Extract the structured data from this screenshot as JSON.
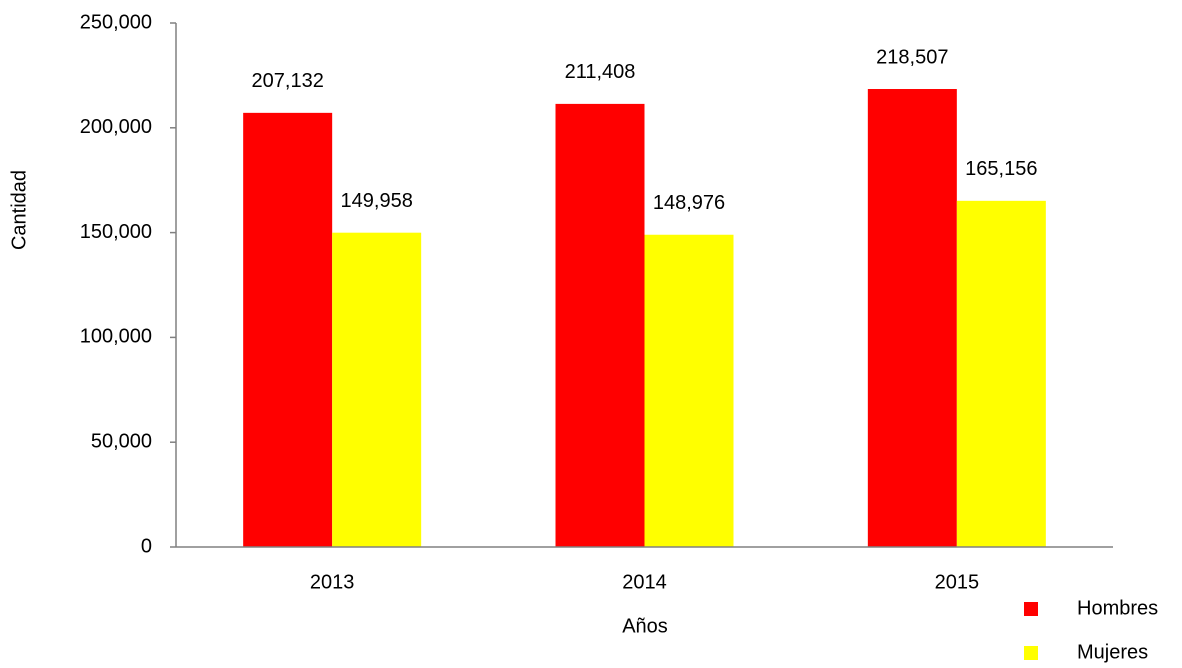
{
  "chart_data": {
    "type": "bar",
    "x_label": "Años",
    "y_label": "Cantidad",
    "categories": [
      "2013",
      "2014",
      "2015"
    ],
    "series": [
      {
        "name": "Hombres",
        "color": "#ff0000",
        "values": [
          207132,
          211408,
          218507
        ],
        "value_labels": [
          "207,132",
          "211,408",
          "218,507"
        ]
      },
      {
        "name": "Mujeres",
        "color": "#ffff00",
        "values": [
          149958,
          148976,
          165156
        ],
        "value_labels": [
          "149,958",
          "148,976",
          "165,156"
        ]
      }
    ],
    "ylim": [
      0,
      250000
    ],
    "yticks": [
      0,
      {
        "value": 50000,
        "label": "50,000"
      },
      {
        "value": 100000,
        "label": "100,000"
      },
      {
        "value": 150000,
        "label": "150,000"
      },
      {
        "value": 200000,
        "label": "200,000"
      },
      {
        "value": 250000,
        "label": "250,000"
      }
    ],
    "grid": false
  }
}
